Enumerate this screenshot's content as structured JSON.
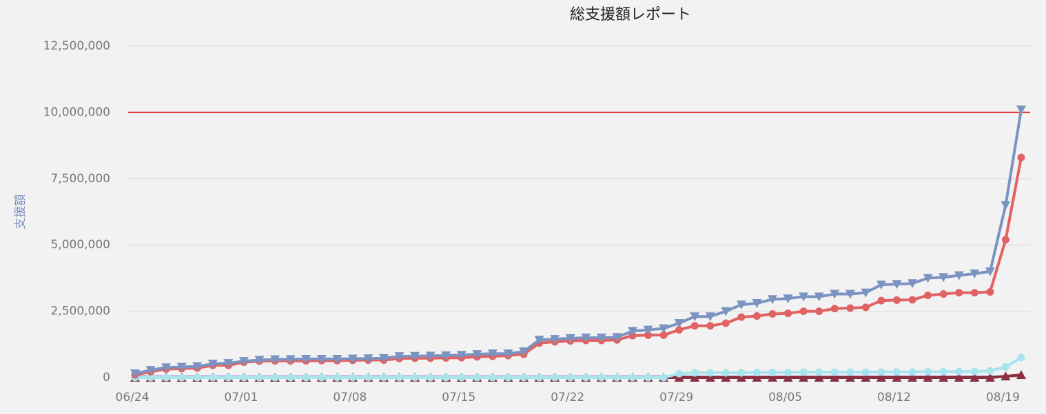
{
  "chart_data": {
    "type": "line",
    "title": "総支援額レポート",
    "y_label": "支援額",
    "categories": [
      "06/24",
      null,
      null,
      null,
      null,
      null,
      null,
      "07/01",
      null,
      null,
      null,
      null,
      null,
      null,
      "07/08",
      null,
      null,
      null,
      null,
      null,
      null,
      "07/15",
      null,
      null,
      null,
      null,
      null,
      null,
      "07/22",
      null,
      null,
      null,
      null,
      null,
      null,
      "07/29",
      null,
      null,
      null,
      null,
      null,
      null,
      "08/05",
      null,
      null,
      null,
      null,
      null,
      null,
      "08/12",
      null,
      null,
      null,
      null,
      null,
      null,
      "08/19",
      null
    ],
    "series": [
      {
        "color": "#7b93c0",
        "marker": "triangle-down",
        "values": [
          150000,
          280000,
          380000,
          400000,
          420000,
          520000,
          540000,
          620000,
          660000,
          680000,
          690000,
          700000,
          700000,
          700000,
          710000,
          720000,
          730000,
          800000,
          810000,
          820000,
          830000,
          850000,
          880000,
          900000,
          900000,
          980000,
          1420000,
          1450000,
          1480000,
          1500000,
          1500000,
          1520000,
          1750000,
          1800000,
          1850000,
          2050000,
          2300000,
          2300000,
          2500000,
          2750000,
          2800000,
          2950000,
          2980000,
          3050000,
          3050000,
          3150000,
          3150000,
          3200000,
          3500000,
          3520000,
          3550000,
          3750000,
          3780000,
          3850000,
          3920000,
          4000000,
          6500000,
          10100000
        ]
      },
      {
        "color": "#e06262",
        "marker": "circle",
        "values": [
          100000,
          220000,
          320000,
          340000,
          360000,
          460000,
          460000,
          580000,
          620000,
          630000,
          630000,
          630000,
          640000,
          640000,
          650000,
          660000,
          660000,
          720000,
          730000,
          730000,
          740000,
          750000,
          780000,
          800000,
          830000,
          880000,
          1300000,
          1350000,
          1380000,
          1400000,
          1400000,
          1420000,
          1580000,
          1600000,
          1600000,
          1800000,
          1950000,
          1950000,
          2050000,
          2280000,
          2320000,
          2400000,
          2420000,
          2500000,
          2500000,
          2600000,
          2620000,
          2650000,
          2900000,
          2920000,
          2930000,
          3100000,
          3150000,
          3200000,
          3200000,
          3230000,
          5200000,
          8300000
        ]
      },
      {
        "color": "#a8e4ec",
        "marker": "circle",
        "values": [
          0,
          0,
          0,
          0,
          0,
          0,
          0,
          0,
          0,
          0,
          0,
          0,
          0,
          0,
          0,
          0,
          0,
          0,
          0,
          0,
          0,
          0,
          0,
          0,
          0,
          0,
          0,
          0,
          0,
          0,
          0,
          0,
          0,
          0,
          0,
          150000,
          180000,
          180000,
          180000,
          180000,
          190000,
          190000,
          190000,
          200000,
          200000,
          200000,
          200000,
          200000,
          210000,
          210000,
          210000,
          220000,
          220000,
          230000,
          230000,
          250000,
          400000,
          750000
        ]
      },
      {
        "color": "#8a3040",
        "marker": "triangle-up",
        "values": [
          0,
          0,
          0,
          0,
          0,
          0,
          0,
          0,
          0,
          0,
          0,
          0,
          0,
          0,
          0,
          0,
          0,
          0,
          0,
          0,
          0,
          0,
          0,
          0,
          0,
          0,
          0,
          0,
          0,
          0,
          0,
          0,
          0,
          0,
          0,
          0,
          0,
          0,
          0,
          0,
          0,
          0,
          0,
          0,
          0,
          0,
          0,
          0,
          0,
          0,
          0,
          0,
          0,
          0,
          0,
          0,
          50000,
          100000
        ]
      },
      {
        "color": "#8f7fd8",
        "marker": "none",
        "values": [
          50000,
          50000,
          50000,
          50000,
          50000,
          50000,
          50000,
          50000,
          50000,
          50000,
          50000,
          50000,
          50000,
          50000,
          50000,
          50000,
          50000,
          50000,
          50000,
          50000,
          50000,
          50000,
          50000,
          50000,
          50000,
          50000,
          50000,
          50000,
          50000,
          50000,
          50000,
          50000,
          50000,
          50000,
          50000,
          50000,
          50000,
          50000,
          50000,
          50000,
          50000,
          50000,
          50000,
          50000,
          50000,
          50000,
          50000,
          50000,
          50000,
          50000,
          50000,
          50000,
          50000,
          50000,
          50000,
          50000,
          50000,
          50000
        ]
      }
    ],
    "reference_line": {
      "value": 10000000,
      "color": "#e03030"
    },
    "ylim": [
      0,
      12500000
    ],
    "yticks": [
      0,
      {
        "value": 2500000,
        "label": "2,500,000"
      },
      {
        "value": 5000000,
        "label": "5,000,000"
      },
      {
        "value": 7500000,
        "label": "7,500,000"
      },
      {
        "value": 10000000,
        "label": "10,000,000"
      },
      {
        "value": 12500000,
        "label": "12,500,000"
      }
    ],
    "grid": true
  }
}
